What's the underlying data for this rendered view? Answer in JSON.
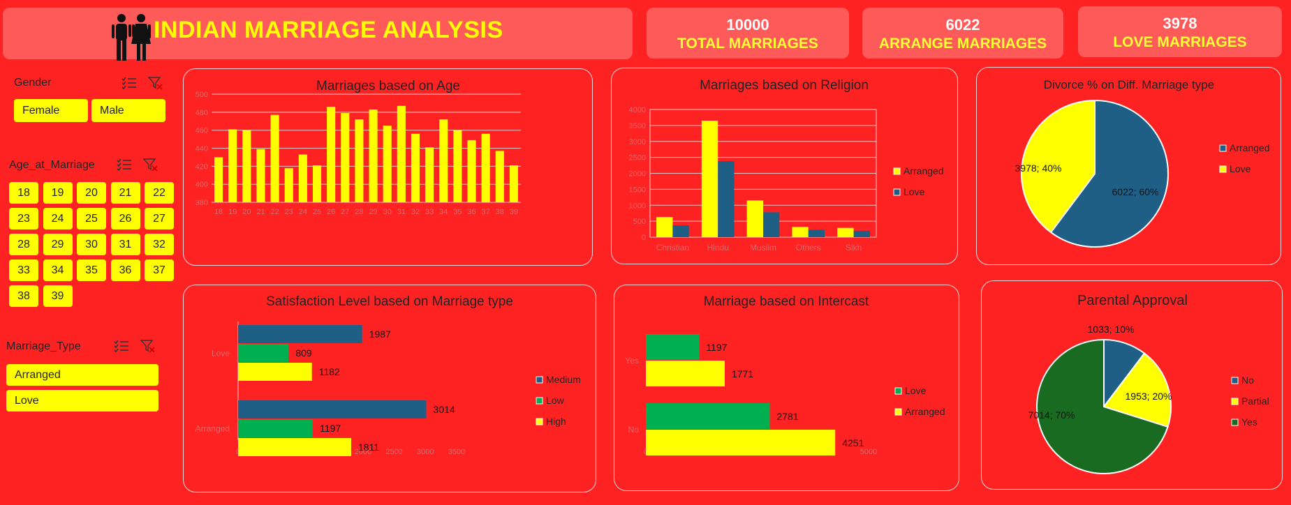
{
  "header": {
    "title": "INDIAN MARRIAGE ANALYSIS"
  },
  "kpis": [
    {
      "value": "10000",
      "label": "TOTAL MARRIAGES"
    },
    {
      "value": "6022",
      "label": "ARRANGE MARRIAGES"
    },
    {
      "value": "3978",
      "label": "LOVE MARRIAGES"
    }
  ],
  "slicers": {
    "gender": {
      "title": "Gender",
      "items": [
        "Female",
        "Male"
      ]
    },
    "age": {
      "title": "Age_at_Marriage",
      "items": [
        "18",
        "19",
        "20",
        "21",
        "22",
        "23",
        "24",
        "25",
        "26",
        "27",
        "28",
        "29",
        "30",
        "31",
        "32",
        "33",
        "34",
        "35",
        "36",
        "37",
        "38",
        "39"
      ]
    },
    "marriage_type": {
      "title": "Marriage_Type",
      "items": [
        "Arranged",
        "Love"
      ]
    }
  },
  "colors": {
    "background": "#ff2222",
    "yellow": "#ffff00",
    "blue": "#1f5f86",
    "green": "#00b050",
    "darkgreen": "#1a6b22"
  },
  "chart_data": [
    {
      "id": "age",
      "type": "bar",
      "title": "Marriages based on Age",
      "categories": [
        "18",
        "19",
        "20",
        "21",
        "22",
        "23",
        "24",
        "25",
        "26",
        "27",
        "28",
        "29",
        "30",
        "31",
        "32",
        "33",
        "34",
        "35",
        "36",
        "37",
        "38",
        "39"
      ],
      "values": [
        430,
        461,
        460,
        439,
        477,
        418,
        433,
        421,
        486,
        479,
        472,
        483,
        465,
        487,
        456,
        441,
        472,
        460,
        449,
        456,
        437,
        421
      ],
      "ylim": [
        380,
        500
      ],
      "yticks": [
        "380",
        "400",
        "420",
        "440",
        "460",
        "480",
        "500"
      ],
      "grid": true
    },
    {
      "id": "religion",
      "type": "bar",
      "title": "Marriages based on Religion",
      "categories": [
        "Christian",
        "Hindu",
        "Muslim",
        "Others",
        "Sikh"
      ],
      "series": [
        {
          "name": "Arranged",
          "values": [
            630,
            3650,
            1150,
            320,
            290
          ]
        },
        {
          "name": "Love",
          "values": [
            370,
            2380,
            780,
            230,
            200
          ]
        }
      ],
      "ylim": [
        0,
        4000
      ],
      "yticks": [
        "0",
        "500",
        "1000",
        "1500",
        "2000",
        "2500",
        "3000",
        "3500",
        "4000"
      ],
      "legend": "right",
      "grid": true
    },
    {
      "id": "divorce",
      "type": "pie",
      "title": "Divorce % on Diff. Marriage type",
      "slices": [
        {
          "name": "Arranged",
          "value": 6022,
          "label": "6022; 60%"
        },
        {
          "name": "Love",
          "value": 3978,
          "label": "3978; 40%"
        }
      ],
      "legend": "right"
    },
    {
      "id": "satisfaction",
      "type": "bar",
      "title": "Satisfaction Level based on Marriage type",
      "orientation": "horizontal",
      "categories": [
        "Love",
        "Arranged"
      ],
      "series": [
        {
          "name": "Medium",
          "values": [
            1987,
            3014
          ]
        },
        {
          "name": "Low",
          "values": [
            809,
            1197
          ]
        },
        {
          "name": "High",
          "values": [
            1182,
            1811
          ]
        }
      ],
      "xlim": [
        0,
        3500
      ],
      "xticks": [
        "0",
        "500",
        "1000",
        "1500",
        "2000",
        "2500",
        "3000",
        "3500"
      ],
      "legend": "right"
    },
    {
      "id": "intercast",
      "type": "bar",
      "title": "Marriage based on Intercast",
      "orientation": "horizontal",
      "categories": [
        "Yes",
        "No"
      ],
      "series": [
        {
          "name": "Love",
          "values": [
            1197,
            2781
          ]
        },
        {
          "name": "Arranged",
          "values": [
            1771,
            4251
          ]
        }
      ],
      "xlim": [
        0,
        5000
      ],
      "xticks": [
        "0",
        "1000",
        "2000",
        "3000",
        "4000",
        "5000"
      ],
      "legend": "right"
    },
    {
      "id": "parental",
      "type": "pie",
      "title": "Parental Approval",
      "slices": [
        {
          "name": "No",
          "value": 1033,
          "label": "1033; 10%"
        },
        {
          "name": "Partial",
          "value": 1953,
          "label": "1953; 20%"
        },
        {
          "name": "Yes",
          "value": 7014,
          "label": "7014; 70%"
        }
      ],
      "legend": "right"
    }
  ]
}
